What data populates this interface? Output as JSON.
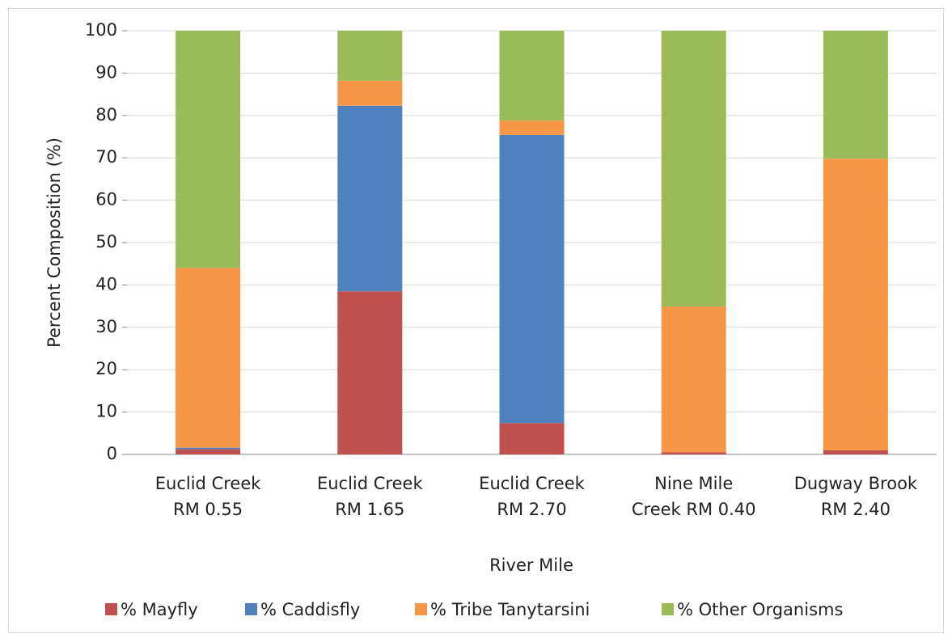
{
  "chart_data": {
    "type": "stacked_bar",
    "categories": [
      "Euclid Creek\nRM 0.55",
      "Euclid Creek\nRM 1.65",
      "Euclid Creek\nRM 2.70",
      "Nine Mile\nCreek RM 0.40",
      "Dugway Brook\nRM 2.40"
    ],
    "series": [
      {
        "name": "% Mayfly",
        "color": "#c0504d",
        "values": [
          1.2,
          38.5,
          7.4,
          0.5,
          1.0
        ]
      },
      {
        "name": "% Caddisfly",
        "color": "#4f81bd",
        "values": [
          0.4,
          43.8,
          68.0,
          0,
          0
        ]
      },
      {
        "name": "% Tribe Tanytarsini",
        "color": "#f79646",
        "values": [
          42.4,
          5.9,
          3.4,
          34.4,
          68.8
        ]
      },
      {
        "name": "% Other Organisms",
        "color": "#9bbb59",
        "values": [
          56.0,
          11.8,
          21.2,
          65.1,
          30.2
        ]
      }
    ],
    "xlabel": "River Mile",
    "ylabel": "Percent Composition (%)",
    "ylim": [
      0,
      100
    ],
    "yticks": [
      0,
      10,
      20,
      30,
      40,
      50,
      60,
      70,
      80,
      90,
      100
    ],
    "grid": true,
    "legend": "bottom"
  }
}
